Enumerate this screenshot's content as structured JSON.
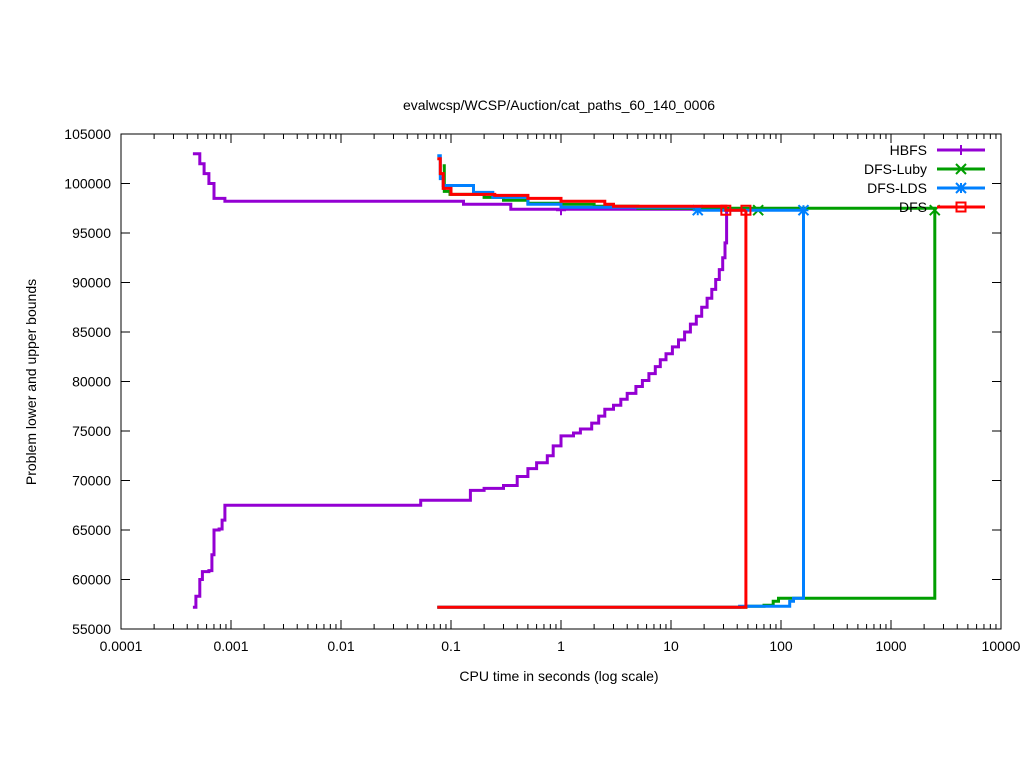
{
  "chart_data": {
    "type": "line",
    "title": "evalwcsp/WCSP/Auction/cat_paths_60_140_0006",
    "xlabel": "CPU time in seconds (log scale)",
    "ylabel": "Problem lower and upper bounds",
    "xscale": "log",
    "xlim": [
      0.0001,
      10000
    ],
    "ylim": [
      55000,
      105000
    ],
    "xticks": [
      0.0001,
      0.001,
      0.01,
      0.1,
      1,
      10,
      100,
      1000,
      10000
    ],
    "xtick_labels": [
      "0.0001",
      "0.001",
      "0.01",
      "0.1",
      "1",
      "10",
      "100",
      "1000",
      "10000"
    ],
    "yticks": [
      55000,
      60000,
      65000,
      70000,
      75000,
      80000,
      85000,
      90000,
      95000,
      100000,
      105000
    ],
    "ytick_labels": [
      "55000",
      "60000",
      "65000",
      "70000",
      "75000",
      "80000",
      "85000",
      "90000",
      "95000",
      "100000",
      "105000"
    ],
    "legend_position": "top-right",
    "grid": false,
    "series": [
      {
        "name": "HBFS",
        "color": "#9400d3",
        "marker": "plus",
        "lower": [
          [
            0.00045,
            57200
          ],
          [
            0.00048,
            58300
          ],
          [
            0.00052,
            60000
          ],
          [
            0.00055,
            60800
          ],
          [
            0.00063,
            60900
          ],
          [
            0.00067,
            62500
          ],
          [
            0.0007,
            65000
          ],
          [
            0.00078,
            65100
          ],
          [
            0.00083,
            66000
          ],
          [
            0.00088,
            67500
          ],
          [
            0.053,
            68000
          ],
          [
            0.15,
            69000
          ],
          [
            0.2,
            69200
          ],
          [
            0.3,
            69500
          ],
          [
            0.4,
            70400
          ],
          [
            0.5,
            71200
          ],
          [
            0.6,
            71800
          ],
          [
            0.75,
            72500
          ],
          [
            0.85,
            73500
          ],
          [
            1.0,
            74500
          ],
          [
            1.3,
            74800
          ],
          [
            1.5,
            75200
          ],
          [
            1.9,
            75800
          ],
          [
            2.2,
            76500
          ],
          [
            2.5,
            77200
          ],
          [
            3.0,
            77600
          ],
          [
            3.5,
            78200
          ],
          [
            4.0,
            78800
          ],
          [
            4.8,
            79500
          ],
          [
            5.5,
            80100
          ],
          [
            6.3,
            80800
          ],
          [
            7.2,
            81500
          ],
          [
            8.0,
            82200
          ],
          [
            9.0,
            82800
          ],
          [
            10.3,
            83500
          ],
          [
            11.7,
            84200
          ],
          [
            13.3,
            85000
          ],
          [
            15.0,
            85800
          ],
          [
            17.0,
            86600
          ],
          [
            19.0,
            87500
          ],
          [
            21.3,
            88400
          ],
          [
            23.5,
            89300
          ],
          [
            25.5,
            90300
          ],
          [
            27.5,
            91300
          ],
          [
            29.5,
            92500
          ],
          [
            31.0,
            94000
          ],
          [
            32.0,
            95700
          ],
          [
            32.0,
            97300
          ]
        ],
        "upper": [
          [
            0.00045,
            103000
          ],
          [
            0.00052,
            102000
          ],
          [
            0.00057,
            101000
          ],
          [
            0.00063,
            100000
          ],
          [
            0.0007,
            98500
          ],
          [
            0.00088,
            98200
          ],
          [
            0.11,
            98200
          ],
          [
            0.13,
            97900
          ],
          [
            0.35,
            97400
          ],
          [
            32.0,
            97300
          ]
        ],
        "markers": [
          [
            1.0,
            97300
          ]
        ]
      },
      {
        "name": "DFS-Luby",
        "color": "#009e00",
        "marker": "x",
        "lower": [
          [
            0.075,
            57200
          ],
          [
            45.0,
            57200
          ],
          [
            48.0,
            57300
          ],
          [
            70.0,
            57400
          ],
          [
            85.0,
            57800
          ],
          [
            95.0,
            58100
          ],
          [
            2500,
            58100
          ],
          [
            2500,
            97300
          ]
        ],
        "upper": [
          [
            0.084,
            101800
          ],
          [
            0.087,
            99200
          ],
          [
            0.098,
            98900
          ],
          [
            0.2,
            98600
          ],
          [
            0.3,
            98300
          ],
          [
            0.5,
            98000
          ],
          [
            1.0,
            97900
          ],
          [
            2.0,
            97700
          ],
          [
            5.0,
            97500
          ],
          [
            2500,
            97300
          ]
        ],
        "markers": [
          [
            62,
            97300
          ],
          [
            2500,
            97300
          ]
        ]
      },
      {
        "name": "DFS-LDS",
        "color": "#0080ff",
        "marker": "star",
        "lower": [
          [
            0.075,
            57200
          ],
          [
            42.0,
            57300
          ],
          [
            110.0,
            57300
          ],
          [
            120.0,
            57800
          ],
          [
            130.0,
            58100
          ],
          [
            160.0,
            58100
          ],
          [
            160.0,
            97300
          ]
        ],
        "upper": [
          [
            0.075,
            102800
          ],
          [
            0.08,
            100500
          ],
          [
            0.085,
            99800
          ],
          [
            0.16,
            99100
          ],
          [
            0.24,
            98600
          ],
          [
            0.5,
            97900
          ],
          [
            1.0,
            97600
          ],
          [
            17.5,
            97300
          ],
          [
            160,
            97300
          ]
        ],
        "markers": [
          [
            17.5,
            97300
          ],
          [
            160,
            97300
          ]
        ]
      },
      {
        "name": "DFS",
        "color": "#ff0000",
        "marker": "square",
        "lower": [
          [
            0.075,
            57200
          ],
          [
            48.0,
            57200
          ],
          [
            48.0,
            97300
          ]
        ],
        "upper": [
          [
            0.075,
            102500
          ],
          [
            0.08,
            101000
          ],
          [
            0.085,
            99500
          ],
          [
            0.1,
            98900
          ],
          [
            0.25,
            98800
          ],
          [
            0.5,
            98500
          ],
          [
            1.0,
            98200
          ],
          [
            2.5,
            97900
          ],
          [
            3.0,
            97700
          ],
          [
            31.5,
            97300
          ],
          [
            48,
            97300
          ]
        ],
        "markers": [
          [
            31.5,
            97300
          ],
          [
            48,
            97300
          ]
        ]
      }
    ]
  }
}
